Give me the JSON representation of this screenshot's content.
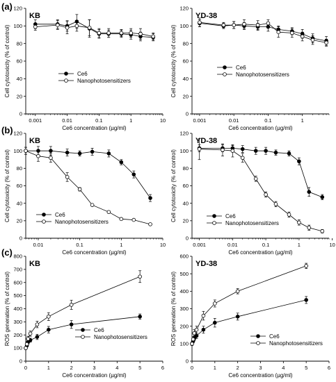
{
  "panel_labels": [
    "(a)",
    "(b)",
    "(c)"
  ],
  "colors": {
    "ink": "#000000",
    "filled_marker": "#000000",
    "open_marker": "#ffffff"
  },
  "chart_data": [
    {
      "type": "line",
      "panel": "(a)",
      "title": "KB",
      "xlabel": "Ce6 concentration (µg/ml)",
      "ylabel": "Cell cytotoxicity (% of control)",
      "xscale": "log",
      "xlim": [
        0.0005,
        10
      ],
      "ylim": [
        0,
        120
      ],
      "xticks": [
        0.001,
        0.01,
        0.1,
        1,
        10
      ],
      "xtick_labels": [
        "0.001",
        "0.01",
        "0.1",
        "1",
        "10"
      ],
      "yticks": [
        0,
        20,
        40,
        60,
        80,
        100,
        120
      ],
      "legend_position": "lower-left",
      "x": [
        0.001,
        0.005,
        0.01,
        0.02,
        0.05,
        0.1,
        0.2,
        0.5,
        1,
        2,
        5
      ],
      "series": [
        {
          "name": "Ce6",
          "marker": "filled",
          "values": [
            102,
            102,
            100,
            105,
            97,
            91,
            91,
            91,
            90,
            88,
            87
          ],
          "errors": [
            5,
            5,
            6,
            8,
            10,
            5,
            4,
            4,
            5,
            5,
            4
          ]
        },
        {
          "name": "Nanophotosensitizers",
          "marker": "open",
          "values": [
            99,
            101,
            98,
            100,
            98,
            92,
            92,
            92,
            92,
            91,
            88
          ],
          "errors": [
            4,
            5,
            7,
            6,
            9,
            5,
            5,
            4,
            5,
            6,
            4
          ]
        }
      ]
    },
    {
      "type": "line",
      "panel": "",
      "title": "YD-38",
      "xlabel": "Ce6 concentration (µg/ml)",
      "ylabel": "Cell cytotoxicity (% of control)",
      "xscale": "log",
      "xlim": [
        0.0006,
        6
      ],
      "ylim": [
        0,
        120
      ],
      "xticks": [
        0.001,
        0.01,
        0.1,
        1
      ],
      "xtick_labels": [
        "0.001",
        "0.01",
        "0.1",
        "1"
      ],
      "yticks": [
        0,
        20,
        40,
        60,
        80,
        100,
        120
      ],
      "legend_position": "lower-left",
      "x": [
        0.001,
        0.005,
        0.01,
        0.02,
        0.05,
        0.1,
        0.2,
        0.5,
        1,
        2,
        5
      ],
      "series": [
        {
          "name": "Ce6",
          "marker": "filled",
          "values": [
            103,
            100,
            101,
            100,
            99,
            99,
            96,
            94,
            91,
            86,
            83
          ],
          "errors": [
            4,
            3,
            4,
            4,
            4,
            5,
            4,
            4,
            5,
            5,
            5
          ]
        },
        {
          "name": "Nanophotosensitizers",
          "marker": "open",
          "values": [
            104,
            101,
            101,
            102,
            101,
            103,
            93,
            92,
            88,
            84,
            81
          ],
          "errors": [
            5,
            3,
            4,
            5,
            5,
            4,
            6,
            5,
            5,
            5,
            4
          ]
        }
      ]
    },
    {
      "type": "line",
      "panel": "(b)",
      "title": "KB",
      "xlabel": "Ce6 concentration (µg/ml)",
      "ylabel": "Cell cytotoxicity (% of control)",
      "xscale": "log",
      "xlim": [
        0.005,
        10
      ],
      "ylim": [
        0,
        120
      ],
      "xticks": [
        0.01,
        0.1,
        1,
        10
      ],
      "xtick_labels": [
        "0.01",
        "0.1",
        "1",
        "10"
      ],
      "yticks": [
        0,
        20,
        40,
        60,
        80,
        100,
        120
      ],
      "legend_position": "lower-left",
      "x": [
        0.005,
        0.01,
        0.02,
        0.05,
        0.1,
        0.2,
        0.5,
        1,
        2,
        5
      ],
      "series": [
        {
          "name": "Ce6",
          "marker": "filled",
          "values": [
            100,
            100,
            100,
            98,
            97,
            99,
            97,
            87,
            73,
            46
          ],
          "errors": [
            4,
            5,
            5,
            4,
            3,
            4,
            4,
            3,
            4,
            4
          ]
        },
        {
          "name": "Nanophotosensitizers",
          "marker": "open",
          "values": [
            100,
            94,
            92,
            70,
            56,
            38,
            30,
            22,
            21,
            16
          ],
          "errors": [
            4,
            6,
            5,
            5,
            2,
            1,
            1,
            1,
            1,
            1
          ]
        }
      ]
    },
    {
      "type": "line",
      "panel": "",
      "title": "YD-38",
      "xlabel": "Ce6 concentration (µg/ml)",
      "ylabel": "Cell cytotoxicity (% of control)",
      "xscale": "log",
      "xlim": [
        0.0006,
        8
      ],
      "ylim": [
        0,
        120
      ],
      "xticks": [
        0.001,
        0.01,
        0.1,
        1,
        10
      ],
      "xtick_labels": [
        "0.001",
        "0.01",
        "0.1",
        "1",
        "10"
      ],
      "yticks": [
        0,
        20,
        40,
        60,
        80,
        100,
        120
      ],
      "legend_position": "lower-left",
      "x": [
        0.001,
        0.005,
        0.01,
        0.02,
        0.05,
        0.1,
        0.2,
        0.5,
        1,
        2,
        5
      ],
      "series": [
        {
          "name": "Ce6",
          "marker": "filled",
          "values": [
            103,
            103,
            103,
            102,
            100,
            100,
            98,
            97,
            88,
            53,
            47
          ],
          "errors": [
            4,
            4,
            3,
            4,
            4,
            4,
            3,
            3,
            4,
            5,
            3
          ]
        },
        {
          "name": "Nanophotosensitizers",
          "marker": "open",
          "values": [
            102,
            101,
            100,
            92,
            68,
            50,
            39,
            27,
            18,
            12,
            8
          ],
          "errors": [
            12,
            7,
            7,
            5,
            3,
            3,
            3,
            3,
            3,
            3,
            2
          ]
        }
      ]
    },
    {
      "type": "line",
      "panel": "(c)",
      "title": "KB",
      "xlabel": "Ce6 concentration (µg/ml)",
      "ylabel": "ROS generation (% of control)",
      "xscale": "linear",
      "xlim": [
        0,
        6
      ],
      "ylim": [
        0,
        800
      ],
      "xticks": [
        0,
        1,
        2,
        3,
        4,
        5,
        6
      ],
      "xtick_labels": [
        "0",
        "1",
        "2",
        "3",
        "4",
        "5",
        "6"
      ],
      "yticks": [
        0,
        100,
        200,
        300,
        400,
        500,
        600,
        700,
        800
      ],
      "legend_position": "lower-center",
      "x": [
        0,
        0.05,
        0.1,
        0.2,
        0.5,
        1,
        2,
        5
      ],
      "series": [
        {
          "name": "Ce6",
          "marker": "filled",
          "values": [
            100,
            120,
            145,
            160,
            185,
            240,
            280,
            340
          ],
          "errors": [
            10,
            12,
            15,
            15,
            20,
            25,
            30,
            20
          ]
        },
        {
          "name": "Nanophotosensitizers",
          "marker": "open",
          "values": [
            100,
            130,
            170,
            210,
            280,
            340,
            430,
            645
          ],
          "errors": [
            10,
            15,
            20,
            20,
            25,
            30,
            35,
            45
          ]
        }
      ]
    },
    {
      "type": "line",
      "panel": "",
      "title": "YD-38",
      "xlabel": "Ce6 concentration (µg/ml)",
      "ylabel": "ROS generation (% of control)",
      "xscale": "linear",
      "xlim": [
        0,
        6
      ],
      "ylim": [
        0,
        600
      ],
      "xticks": [
        0,
        1,
        2,
        3,
        4,
        5,
        6
      ],
      "xtick_labels": [
        "0",
        "1",
        "2",
        "3",
        "4",
        "5",
        "6"
      ],
      "yticks": [
        0,
        100,
        200,
        300,
        400,
        500,
        600
      ],
      "legend_position": "lower-center",
      "x": [
        0,
        0.05,
        0.1,
        0.2,
        0.5,
        1,
        2,
        5
      ],
      "series": [
        {
          "name": "Ce6",
          "marker": "filled",
          "values": [
            100,
            115,
            130,
            145,
            180,
            220,
            255,
            350
          ],
          "errors": [
            10,
            10,
            12,
            15,
            20,
            25,
            20,
            20
          ]
        },
        {
          "name": "Nanophotosensitizers",
          "marker": "open",
          "values": [
            100,
            125,
            160,
            180,
            260,
            330,
            400,
            545
          ],
          "errors": [
            10,
            15,
            20,
            20,
            25,
            20,
            15,
            15
          ]
        }
      ]
    }
  ]
}
